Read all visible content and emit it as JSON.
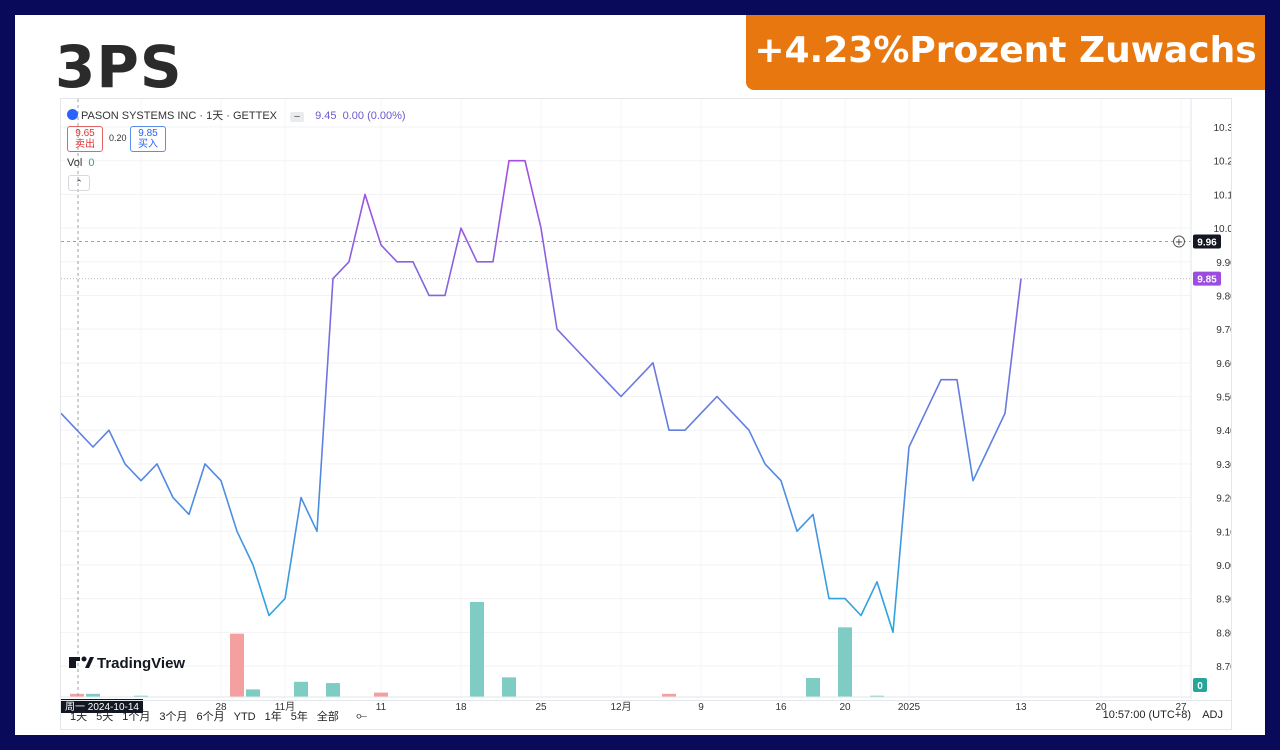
{
  "header": {
    "ticker": "3PS",
    "banner": "+4.23%Prozent Zuwachs"
  },
  "legend": {
    "symbol": "PASON SYSTEMS INC · 1天 · GETTEX",
    "last_price": "9.45",
    "change": "0.00 (0.00%)",
    "sell_price": "9.65",
    "sell_label": "卖出",
    "spread": "0.20",
    "buy_price": "9.85",
    "buy_label": "买入",
    "vol_label": "Vol",
    "vol_value": "0",
    "collapse_icon": "chevron-up-icon"
  },
  "toolbar": {
    "timeframes": [
      "1天",
      "5天",
      "1个月",
      "3个月",
      "6个月",
      "YTD",
      "1年",
      "5年",
      "全部"
    ],
    "compare_icon": "compare-icon",
    "time": "10:57:00 (UTC+8)",
    "adj": "ADJ"
  },
  "watermark": "TradingView",
  "chart_data": {
    "type": "line",
    "x_labels": [
      "1",
      "28",
      "11月",
      "11",
      "18",
      "25",
      "12月",
      "9",
      "16",
      "20",
      "2025",
      "13",
      "20",
      "27"
    ],
    "crosshair_date_label": "周一  2024-10-14",
    "y_ticks": [
      8.7,
      8.8,
      8.9,
      9.0,
      9.1,
      9.2,
      9.3,
      9.4,
      9.5,
      9.6,
      9.7,
      9.8,
      9.9,
      10.0,
      10.1,
      10.2,
      10.3
    ],
    "ylim": [
      8.67,
      10.35
    ],
    "price": [
      9.45,
      9.4,
      9.35,
      9.4,
      9.3,
      9.25,
      9.3,
      9.2,
      9.15,
      9.3,
      9.25,
      9.1,
      9.0,
      8.85,
      8.9,
      9.2,
      9.1,
      9.85,
      9.9,
      10.1,
      9.95,
      9.9,
      9.9,
      9.8,
      9.8,
      10.0,
      9.9,
      9.9,
      10.2,
      10.2,
      10.0,
      9.7,
      9.65,
      9.6,
      9.55,
      9.5,
      9.55,
      9.6,
      9.4,
      9.4,
      9.45,
      9.5,
      9.45,
      9.4,
      9.3,
      9.25,
      9.1,
      9.15,
      8.9,
      8.9,
      8.85,
      8.95,
      8.8,
      9.35,
      9.45,
      9.55,
      9.55,
      9.25,
      9.35,
      9.45,
      9.85
    ],
    "volume": [
      0,
      0.05,
      0.05,
      0,
      0,
      0.02,
      0,
      0,
      0,
      0,
      0,
      1.0,
      0.12,
      0,
      0,
      0.24,
      0,
      0.22,
      0,
      0,
      0.07,
      0,
      0,
      0,
      0,
      0,
      1.5,
      0,
      0.31,
      0,
      0,
      0,
      0,
      0,
      0,
      0,
      0,
      0,
      0.05,
      0,
      0,
      0,
      0,
      0,
      0,
      0,
      0,
      0.3,
      0,
      1.1,
      0,
      0.02,
      0,
      0,
      0,
      0,
      0,
      0,
      0,
      0,
      0
    ],
    "volume_direction": [
      "up",
      "down",
      "up",
      "up",
      "up",
      "up",
      "up",
      "up",
      "up",
      "up",
      "up",
      "down",
      "up",
      "up",
      "up",
      "up",
      "up",
      "up",
      "up",
      "up",
      "down",
      "up",
      "up",
      "up",
      "up",
      "up",
      "up",
      "up",
      "up",
      "up",
      "up",
      "up",
      "up",
      "up",
      "up",
      "up",
      "up",
      "up",
      "down",
      "up",
      "up",
      "up",
      "up",
      "up",
      "up",
      "up",
      "up",
      "up",
      "up",
      "up",
      "up",
      "up",
      "up",
      "up",
      "up",
      "up",
      "up",
      "up",
      "up",
      "up",
      "up"
    ],
    "crosshair_price": "9.96",
    "last_price_label": "9.85",
    "volume_label": "0",
    "colors": {
      "line_low": "#2aa6e0",
      "line_high": "#a64de0",
      "vol_up": "#7fccc4",
      "vol_down": "#f5a0a0",
      "last_label": "#9b4de0"
    }
  }
}
